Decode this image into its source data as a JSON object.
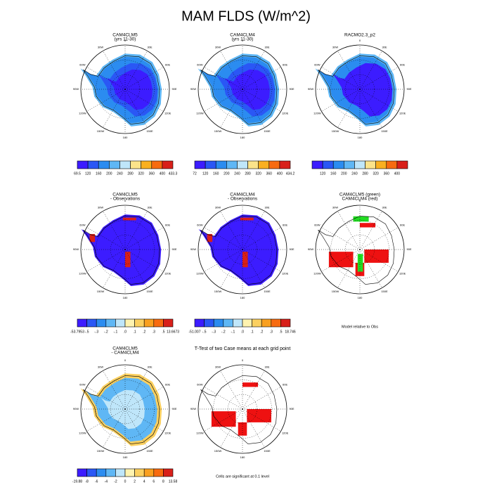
{
  "title": "MAM FLDS (W/m^2)",
  "lon_labels": [
    "0",
    "30E",
    "60E",
    "90E",
    "120E",
    "150E",
    "180",
    "150W",
    "120W",
    "90W",
    "60W",
    "30W"
  ],
  "panels": [
    {
      "title": [
        "CAM4CLM5",
        "(yrs 11-30)"
      ],
      "colorbar": {
        "labels": [
          "69.5",
          "120",
          "160",
          "200",
          "240",
          "280",
          "320",
          "360",
          "400",
          "433.3"
        ],
        "colors": [
          "#3c1cff",
          "#2a57f5",
          "#2b8cf0",
          "#5fb7f5",
          "#bfe6fa",
          "#fbe38a",
          "#f9b020",
          "#f76b10",
          "#d8201a"
        ]
      }
    },
    {
      "title": [
        "CAM4CLM4",
        "(yrs 11-30)"
      ],
      "colorbar": {
        "labels": [
          "72",
          "120",
          "160",
          "200",
          "240",
          "280",
          "320",
          "360",
          "400",
          "434.2"
        ],
        "colors": [
          "#3c1cff",
          "#2a57f5",
          "#2b8cf0",
          "#5fb7f5",
          "#bfe6fa",
          "#fbe38a",
          "#f9b020",
          "#f76b10",
          "#d8201a"
        ]
      }
    },
    {
      "title": [
        "RACMO2.3_p2"
      ],
      "colorbar": {
        "labels": [
          "120",
          "160",
          "200",
          "240",
          "280",
          "320",
          "360",
          "400"
        ],
        "colors": [
          "#3c1cff",
          "#2a57f5",
          "#2b8cf0",
          "#5fb7f5",
          "#bfe6fa",
          "#fbe38a",
          "#f9b020",
          "#f76b10",
          "#d8201a"
        ]
      }
    },
    {
      "title": [
        "CAM4CLM5",
        "- Observations"
      ],
      "colorbar": {
        "labels": [
          "-53.7953",
          "-.5",
          "-.3",
          "-.2",
          "-.1",
          ".0",
          ".1",
          ".2",
          ".3",
          ".5",
          "13.6673"
        ],
        "colors": [
          "#3c1cff",
          "#2a57f5",
          "#2b8cf0",
          "#5fb7f5",
          "#bfe6fa",
          "#fff3b0",
          "#fbd060",
          "#f9a020",
          "#f76b10",
          "#d8201a"
        ]
      }
    },
    {
      "title": [
        "CAM4CLM4",
        "- Observations"
      ],
      "colorbar": {
        "labels": [
          "-51.007",
          "-.5",
          "-.3",
          "-.2",
          "-.1",
          ".0",
          ".1",
          ".2",
          ".3",
          ".5",
          "18.746"
        ],
        "colors": [
          "#3c1cff",
          "#2a57f5",
          "#2b8cf0",
          "#5fb7f5",
          "#bfe6fa",
          "#fff3b0",
          "#fbd060",
          "#f9a020",
          "#f76b10",
          "#d8201a"
        ]
      }
    },
    {
      "title": [
        "CAM4CLM5 (green)",
        "CAM4CLM4 (red)"
      ],
      "note": "Model relative to Obs"
    },
    {
      "title": [
        "CAM4CLM5",
        "- CAM4CLM4"
      ],
      "colorbar": {
        "labels": [
          "-19.88",
          "-8",
          "-6",
          "-4",
          "-2",
          "0",
          "2",
          "4",
          "6",
          "8",
          "13.58"
        ],
        "colors": [
          "#3c1cff",
          "#2a57f5",
          "#2b8cf0",
          "#5fb7f5",
          "#bfe6fa",
          "#fff3b0",
          "#fbd060",
          "#f9a020",
          "#f76b10",
          "#d8201a"
        ]
      }
    },
    {
      "title": [
        "T-Test of two Case means at each grid point"
      ],
      "note": "Cells are significant at 0.1 level"
    }
  ]
}
